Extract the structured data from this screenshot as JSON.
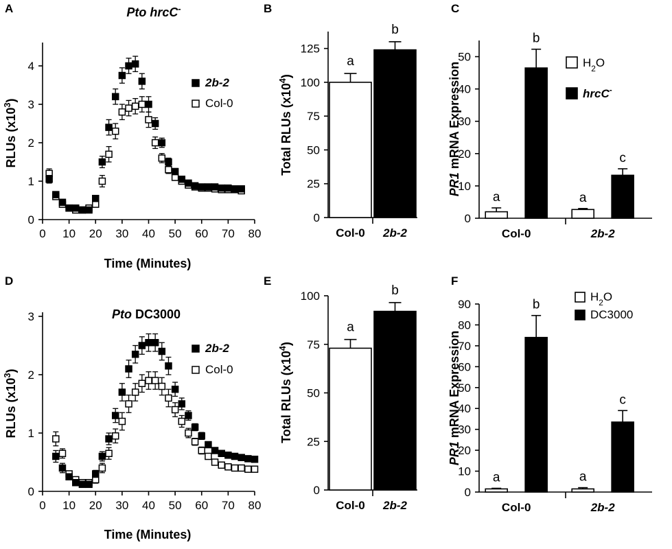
{
  "chart_data": [
    {
      "panel": "A",
      "type": "scatter",
      "title_italic": "Pto hrcC",
      "title_sup": "-",
      "title_rest": "",
      "xlabel": "Time (Minutes)",
      "ylabel": "RLUs (x10",
      "ylabel_sup": "3",
      "ylabel_end": ")",
      "xlim": [
        0,
        80
      ],
      "ylim": [
        0,
        4.5
      ],
      "xticks": [
        "0",
        "10",
        "20",
        "30",
        "40",
        "50",
        "60",
        "70",
        "80"
      ],
      "yticks": [
        "0",
        "1",
        "2",
        "3",
        "4"
      ],
      "series": [
        {
          "name": "2b-2",
          "fill": "#000000",
          "x": [
            2.5,
            5,
            7.5,
            10,
            12.5,
            15,
            17.5,
            20,
            22.5,
            25,
            27.5,
            30,
            32.5,
            35,
            37.5,
            40,
            42.5,
            45,
            47.5,
            50,
            52.5,
            55,
            57.5,
            60,
            62.5,
            65,
            67.5,
            70,
            72.5,
            75
          ],
          "y": [
            1.05,
            0.65,
            0.45,
            0.3,
            0.3,
            0.25,
            0.25,
            0.55,
            1.5,
            2.4,
            3.2,
            3.75,
            4.0,
            4.05,
            3.6,
            3.0,
            2.5,
            2.0,
            1.5,
            1.25,
            1.05,
            0.95,
            0.88,
            0.85,
            0.85,
            0.85,
            0.82,
            0.82,
            0.8,
            0.8
          ],
          "err": [
            0.1,
            0.08,
            0.05,
            0.04,
            0.04,
            0.04,
            0.04,
            0.06,
            0.15,
            0.2,
            0.2,
            0.2,
            0.2,
            0.2,
            0.2,
            0.2,
            0.15,
            0.12,
            0.1,
            0.08,
            0.06,
            0.05,
            0.05,
            0.05,
            0.05,
            0.05,
            0.05,
            0.05,
            0.05,
            0.05
          ]
        },
        {
          "name": "Col-0",
          "fill": "#ffffff",
          "x": [
            2.5,
            5,
            7.5,
            10,
            12.5,
            15,
            17.5,
            20,
            22.5,
            25,
            27.5,
            30,
            32.5,
            35,
            37.5,
            40,
            42.5,
            45,
            47.5,
            50,
            52.5,
            55,
            57.5,
            60,
            62.5,
            65,
            67.5,
            70,
            72.5,
            75
          ],
          "y": [
            1.2,
            0.6,
            0.4,
            0.3,
            0.25,
            0.25,
            0.3,
            0.4,
            1.0,
            1.7,
            2.3,
            2.8,
            2.9,
            2.95,
            3.0,
            2.6,
            2.0,
            1.6,
            1.3,
            1.1,
            1.0,
            0.9,
            0.85,
            0.82,
            0.82,
            0.8,
            0.78,
            0.78,
            0.78,
            0.75
          ],
          "err": [
            0.12,
            0.08,
            0.05,
            0.04,
            0.04,
            0.04,
            0.04,
            0.06,
            0.15,
            0.2,
            0.2,
            0.2,
            0.2,
            0.2,
            0.2,
            0.2,
            0.15,
            0.12,
            0.1,
            0.08,
            0.06,
            0.05,
            0.05,
            0.05,
            0.05,
            0.05,
            0.05,
            0.05,
            0.05,
            0.05
          ]
        }
      ]
    },
    {
      "panel": "B",
      "type": "bar",
      "ylabel": "Total RLUs (x10",
      "ylabel_sup": "4",
      "ylabel_end": ")",
      "ylim": [
        0,
        137.5
      ],
      "yticks": [
        "0",
        "25",
        "50",
        "75",
        "100",
        "125"
      ],
      "categories": [
        "Col-0",
        "2b-2"
      ],
      "categories_italic": [
        false,
        true
      ],
      "values": [
        100,
        124
      ],
      "errors": [
        6.5,
        6
      ],
      "fills": [
        "#ffffff",
        "#000000"
      ],
      "letters": [
        "a",
        "b"
      ]
    },
    {
      "panel": "C",
      "type": "bar",
      "ylabel_italic": "PR1",
      "ylabel": " mRNA Expression",
      "ylim": [
        0,
        55
      ],
      "yticks": [
        "0",
        "10",
        "20",
        "30",
        "40",
        "50"
      ],
      "categories": [
        "Col-0",
        "2b-2"
      ],
      "categories_italic": [
        false,
        true
      ],
      "series": [
        {
          "name": "H",
          "sub": "2",
          "end": "O",
          "italic": false,
          "sup": "",
          "fill": "#ffffff",
          "values": [
            2.0,
            2.7
          ],
          "errors": [
            1.2,
            0.3
          ],
          "letters": [
            "a",
            "a"
          ]
        },
        {
          "name": "hrcC",
          "sub": "",
          "end": "",
          "italic": true,
          "sup": "-",
          "fill": "#000000",
          "values": [
            46.5,
            13.3
          ],
          "errors": [
            5.8,
            2.0
          ],
          "letters": [
            "b",
            "c"
          ]
        }
      ]
    },
    {
      "panel": "D",
      "type": "scatter",
      "title_italic": "Pto",
      "title_sup": "",
      "title_rest": " DC3000",
      "xlabel": "Time (Minutes)",
      "ylabel": "RLUs (x10",
      "ylabel_sup": "3",
      "ylabel_end": ")",
      "xlim": [
        0,
        80
      ],
      "ylim": [
        0,
        3
      ],
      "xticks": [
        "0",
        "10",
        "20",
        "30",
        "40",
        "50",
        "60",
        "70",
        "80"
      ],
      "yticks": [
        "0",
        "1",
        "2",
        "3"
      ],
      "series": [
        {
          "name": "2b-2",
          "fill": "#000000",
          "x": [
            5,
            7.5,
            10,
            12.5,
            15,
            17.5,
            20,
            22.5,
            25,
            27.5,
            30,
            32.5,
            35,
            37.5,
            40,
            42.5,
            45,
            47.5,
            50,
            52.5,
            55,
            57.5,
            60,
            62.5,
            65,
            67.5,
            70,
            72.5,
            75,
            77.5,
            80
          ],
          "y": [
            0.6,
            0.4,
            0.25,
            0.15,
            0.12,
            0.12,
            0.3,
            0.6,
            0.9,
            1.3,
            1.7,
            2.1,
            2.35,
            2.5,
            2.55,
            2.55,
            2.4,
            2.15,
            1.75,
            1.5,
            1.3,
            1.1,
            0.95,
            0.8,
            0.7,
            0.65,
            0.62,
            0.6,
            0.58,
            0.56,
            0.55
          ],
          "err": [
            0.1,
            0.08,
            0.05,
            0.04,
            0.04,
            0.04,
            0.06,
            0.08,
            0.1,
            0.12,
            0.15,
            0.15,
            0.15,
            0.15,
            0.15,
            0.15,
            0.15,
            0.15,
            0.12,
            0.1,
            0.08,
            0.06,
            0.06,
            0.05,
            0.05,
            0.05,
            0.04,
            0.04,
            0.04,
            0.04,
            0.04
          ]
        },
        {
          "name": "Col-0",
          "fill": "#ffffff",
          "x": [
            5,
            7.5,
            10,
            12.5,
            15,
            17.5,
            20,
            22.5,
            25,
            27.5,
            30,
            32.5,
            35,
            37.5,
            40,
            42.5,
            45,
            47.5,
            50,
            52.5,
            55,
            57.5,
            60,
            62.5,
            65,
            67.5,
            70,
            72.5,
            75,
            77.5,
            80
          ],
          "y": [
            0.9,
            0.65,
            0.3,
            0.2,
            0.15,
            0.15,
            0.2,
            0.4,
            0.65,
            0.95,
            1.2,
            1.5,
            1.7,
            1.85,
            1.9,
            1.9,
            1.8,
            1.6,
            1.4,
            1.2,
            1.0,
            0.85,
            0.7,
            0.6,
            0.5,
            0.45,
            0.42,
            0.4,
            0.4,
            0.38,
            0.38
          ],
          "err": [
            0.12,
            0.08,
            0.05,
            0.04,
            0.04,
            0.04,
            0.06,
            0.08,
            0.1,
            0.12,
            0.15,
            0.15,
            0.15,
            0.15,
            0.15,
            0.15,
            0.15,
            0.15,
            0.12,
            0.1,
            0.08,
            0.06,
            0.06,
            0.05,
            0.05,
            0.05,
            0.04,
            0.04,
            0.04,
            0.04,
            0.04
          ]
        }
      ]
    },
    {
      "panel": "E",
      "type": "bar",
      "ylabel": "Total RLUs (x10",
      "ylabel_sup": "4",
      "ylabel_end": ")",
      "ylim": [
        0,
        100
      ],
      "yticks": [
        "0",
        "25",
        "50",
        "75",
        "100"
      ],
      "categories": [
        "Col-0",
        "2b-2"
      ],
      "categories_italic": [
        false,
        true
      ],
      "values": [
        73,
        92
      ],
      "errors": [
        4.5,
        4.5
      ],
      "fills": [
        "#ffffff",
        "#000000"
      ],
      "letters": [
        "a",
        "b"
      ]
    },
    {
      "panel": "F",
      "type": "bar",
      "ylabel_italic": "PR1",
      "ylabel": " mRNA Expression",
      "ylim": [
        0,
        90
      ],
      "yticks": [
        "0",
        "10",
        "20",
        "30",
        "40",
        "50",
        "60",
        "70",
        "80",
        "90"
      ],
      "categories": [
        "Col-0",
        "2b-2"
      ],
      "categories_italic": [
        false,
        true
      ],
      "series": [
        {
          "name": "H",
          "sub": "2",
          "end": "O",
          "italic": false,
          "sup": "",
          "fill": "#ffffff",
          "values": [
            1.5,
            1.5
          ],
          "errors": [
            0.3,
            0.6
          ],
          "letters": [
            "a",
            "a"
          ]
        },
        {
          "name": "DC3000",
          "sub": "",
          "end": "",
          "italic": false,
          "sup": "",
          "fill": "#000000",
          "values": [
            74,
            33.5
          ],
          "errors": [
            10.5,
            5.5
          ],
          "letters": [
            "b",
            "c"
          ]
        }
      ]
    }
  ]
}
